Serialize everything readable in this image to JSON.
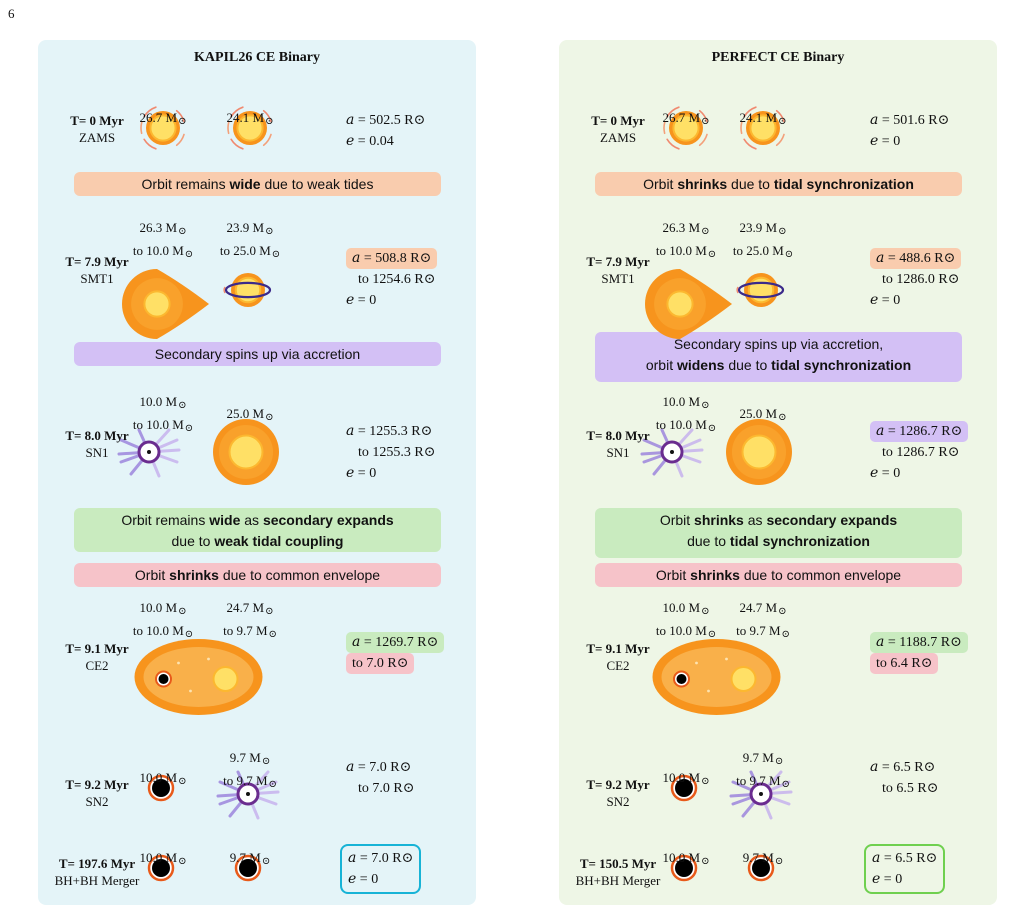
{
  "page_number": "6",
  "msun": "⊙",
  "panels": [
    {
      "title": "KAPIL26 CE Binary",
      "stages": [
        {
          "time": "T= 0 Myr",
          "label": "ZAMS",
          "m1": [
            "26.7 M"
          ],
          "m2": [
            "24.1 M"
          ],
          "orbit": [
            "a = 502.5 R",
            "e = 0.04"
          ]
        },
        {
          "time": "T= 7.9 Myr",
          "label": "SMT1",
          "m1": [
            "26.3 M",
            "to 10.0 M"
          ],
          "m2": [
            "23.9 M",
            "to 25.0 M"
          ],
          "orbit": [
            "a = 508.8 R",
            "to 1254.6 R",
            "e = 0"
          ]
        },
        {
          "time": "T= 8.0 Myr",
          "label": "SN1",
          "m1": [
            "10.0 M",
            "to 10.0 M"
          ],
          "m2": [
            "25.0 M"
          ],
          "orbit": [
            "a = 1255.3 R",
            "to 1255.3 R",
            "e = 0"
          ]
        },
        {
          "time": "T= 9.1 Myr",
          "label": "CE2",
          "m1": [
            "10.0 M",
            "to 10.0 M"
          ],
          "m2": [
            "24.7 M",
            "to 9.7 M"
          ],
          "orbit": [
            "a = 1269.7 R",
            "to 7.0 R"
          ]
        },
        {
          "time": "T= 9.2 Myr",
          "label": "SN2",
          "m1": [
            "10.0 M"
          ],
          "m2": [
            "9.7 M",
            "to 9.7 M"
          ],
          "orbit": [
            "a = 7.0 R",
            "to 7.0 R"
          ]
        },
        {
          "time": "T= 197.6 Myr",
          "label": "BH+BH Merger",
          "m1": [
            "10.0 M"
          ],
          "m2": [
            "9.7 M"
          ],
          "orbit": [
            "a = 7.0 R",
            "e = 0"
          ]
        }
      ],
      "banners": [
        {
          "color": "orange",
          "lines": [
            [
              [
                "Orbit remains ",
                false
              ],
              [
                "wide",
                true
              ],
              [
                " due to weak tides",
                false
              ]
            ]
          ]
        },
        {
          "color": "purple",
          "lines": [
            [
              [
                "Secondary spins up via accretion",
                false
              ]
            ]
          ]
        },
        {
          "color": "green",
          "lines": [
            [
              [
                "Orbit remains ",
                false
              ],
              [
                "wide",
                true
              ],
              [
                " as ",
                false
              ],
              [
                "secondary expands",
                true
              ]
            ],
            [
              [
                "due to ",
                false
              ],
              [
                "weak tidal coupling",
                true
              ]
            ]
          ]
        },
        {
          "color": "red",
          "lines": [
            [
              [
                "Orbit ",
                false
              ],
              [
                "shrinks",
                true
              ],
              [
                " due to common envelope",
                false
              ]
            ]
          ]
        }
      ],
      "final_box_color": "#17b3d6"
    },
    {
      "title": "PERFECT CE Binary",
      "stages": [
        {
          "time": "T= 0 Myr",
          "label": "ZAMS",
          "m1": [
            "26.7 M"
          ],
          "m2": [
            "24.1 M"
          ],
          "orbit": [
            "a = 501.6 R",
            "e = 0"
          ]
        },
        {
          "time": "T= 7.9 Myr",
          "label": "SMT1",
          "m1": [
            "26.3 M",
            "to 10.0 M"
          ],
          "m2": [
            "23.9 M",
            "to 25.0 M"
          ],
          "orbit": [
            "a = 488.6 R",
            "to 1286.0 R",
            "e = 0"
          ]
        },
        {
          "time": "T= 8.0 Myr",
          "label": "SN1",
          "m1": [
            "10.0 M",
            "to 10.0 M"
          ],
          "m2": [
            "25.0 M"
          ],
          "orbit": [
            "a = 1286.7 R",
            "to 1286.7 R",
            "e = 0"
          ]
        },
        {
          "time": "T= 9.1 Myr",
          "label": "CE2",
          "m1": [
            "10.0 M",
            "to 10.0 M"
          ],
          "m2": [
            "24.7 M",
            "to 9.7 M"
          ],
          "orbit": [
            "a = 1188.7 R",
            "to 6.4 R"
          ]
        },
        {
          "time": "T= 9.2 Myr",
          "label": "SN2",
          "m1": [
            "10.0 M"
          ],
          "m2": [
            "9.7 M",
            "to 9.7 M"
          ],
          "orbit": [
            "a = 6.5 R",
            "to 6.5 R"
          ]
        },
        {
          "time": "T= 150.5 Myr",
          "label": "BH+BH Merger",
          "m1": [
            "10.0 M"
          ],
          "m2": [
            "9.7 M"
          ],
          "orbit": [
            "a = 6.5 R",
            "e = 0"
          ]
        }
      ],
      "banners": [
        {
          "color": "orange",
          "lines": [
            [
              [
                "Orbit ",
                false
              ],
              [
                "shrinks",
                true
              ],
              [
                " due to ",
                false
              ],
              [
                "tidal synchronization",
                true
              ]
            ]
          ]
        },
        {
          "color": "purple",
          "lines": [
            [
              [
                "Secondary spins up via accretion,",
                false
              ]
            ],
            [
              [
                "orbit ",
                false
              ],
              [
                "widens",
                true
              ],
              [
                " due to ",
                false
              ],
              [
                "tidal synchronization",
                true
              ]
            ]
          ]
        },
        {
          "color": "green",
          "lines": [
            [
              [
                "Orbit ",
                false
              ],
              [
                "shrinks",
                true
              ],
              [
                " as ",
                false
              ],
              [
                "secondary expands",
                true
              ]
            ],
            [
              [
                "due to ",
                false
              ],
              [
                "tidal synchronization",
                true
              ]
            ]
          ]
        },
        {
          "color": "red",
          "lines": [
            [
              [
                "Orbit ",
                false
              ],
              [
                "shrinks",
                true
              ],
              [
                " due to common envelope",
                false
              ]
            ]
          ]
        }
      ],
      "final_box_color": "#6fd04f"
    }
  ]
}
